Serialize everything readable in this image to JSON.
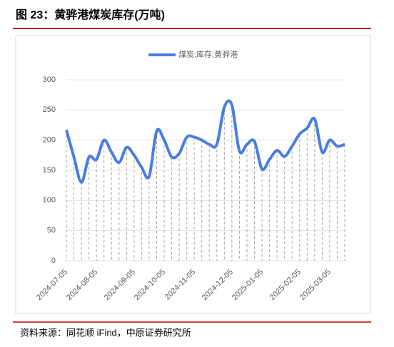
{
  "title": "图 23：黄骅港煤炭库存(万吨)",
  "source": "资料来源：同花顺 iFind，中原证券研究所",
  "chart_data": {
    "type": "line",
    "categories": [
      "2024-07-05",
      null,
      null,
      null,
      "2024-08-05",
      null,
      null,
      null,
      null,
      "2024-09-05",
      null,
      null,
      null,
      "2024-10-05",
      null,
      null,
      null,
      "2024-11-05",
      null,
      null,
      null,
      null,
      "2024-12-05",
      null,
      null,
      null,
      "2025-01-05",
      null,
      null,
      null,
      null,
      "2025-02-05",
      null,
      null,
      null,
      "2025-03-05",
      null,
      null
    ],
    "series": [
      {
        "name": "煤炭:库存:黄骅港",
        "color": "#4a7de2",
        "values": [
          217,
          172,
          130,
          172,
          168,
          200,
          180,
          163,
          188,
          175,
          155,
          140,
          215,
          200,
          172,
          178,
          205,
          205,
          200,
          193,
          193,
          255,
          258,
          182,
          193,
          198,
          152,
          168,
          183,
          173,
          190,
          210,
          220,
          235,
          180,
          200,
          190,
          193
        ]
      }
    ],
    "ylim": [
      0,
      300
    ],
    "yticks": [
      0,
      50,
      100,
      150,
      200,
      250,
      300
    ],
    "grid": true,
    "legend": "top"
  }
}
